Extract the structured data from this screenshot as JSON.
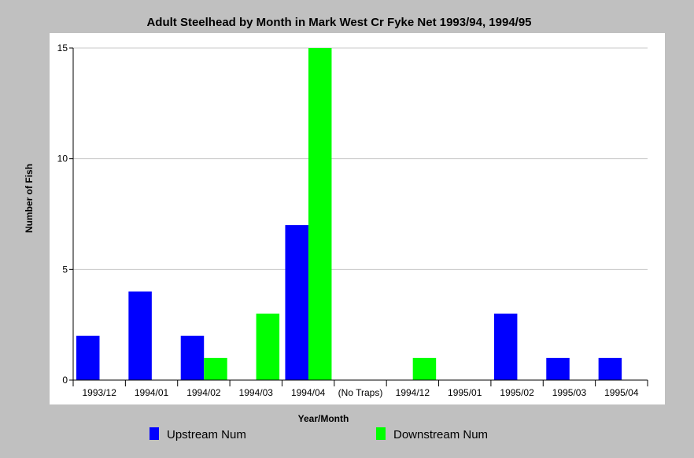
{
  "chart_data": {
    "type": "bar",
    "title": "Adult Steelhead by Month in Mark West Cr Fyke Net 1993/94, 1994/95",
    "xlabel": "Year/Month",
    "ylabel": "Number of Fish",
    "ylim": [
      0,
      15
    ],
    "yticks": [
      "0",
      "5",
      "10",
      "15"
    ],
    "grid": true,
    "legend_position": "bottom",
    "categories": [
      "1993/12",
      "1994/01",
      "1994/02",
      "1994/03",
      "1994/04",
      "(No Traps)",
      "1994/12",
      "1995/01",
      "1995/02",
      "1995/03",
      "1995/04"
    ],
    "series": [
      {
        "name": "Upstream Num",
        "color": "#0000ff",
        "values": [
          2,
          4,
          2,
          0,
          7,
          0,
          0,
          0,
          3,
          1,
          1
        ]
      },
      {
        "name": "Downstream Num",
        "color": "#00ff00",
        "values": [
          0,
          0,
          1,
          3,
          15,
          0,
          1,
          0,
          0,
          0,
          0
        ]
      }
    ]
  }
}
